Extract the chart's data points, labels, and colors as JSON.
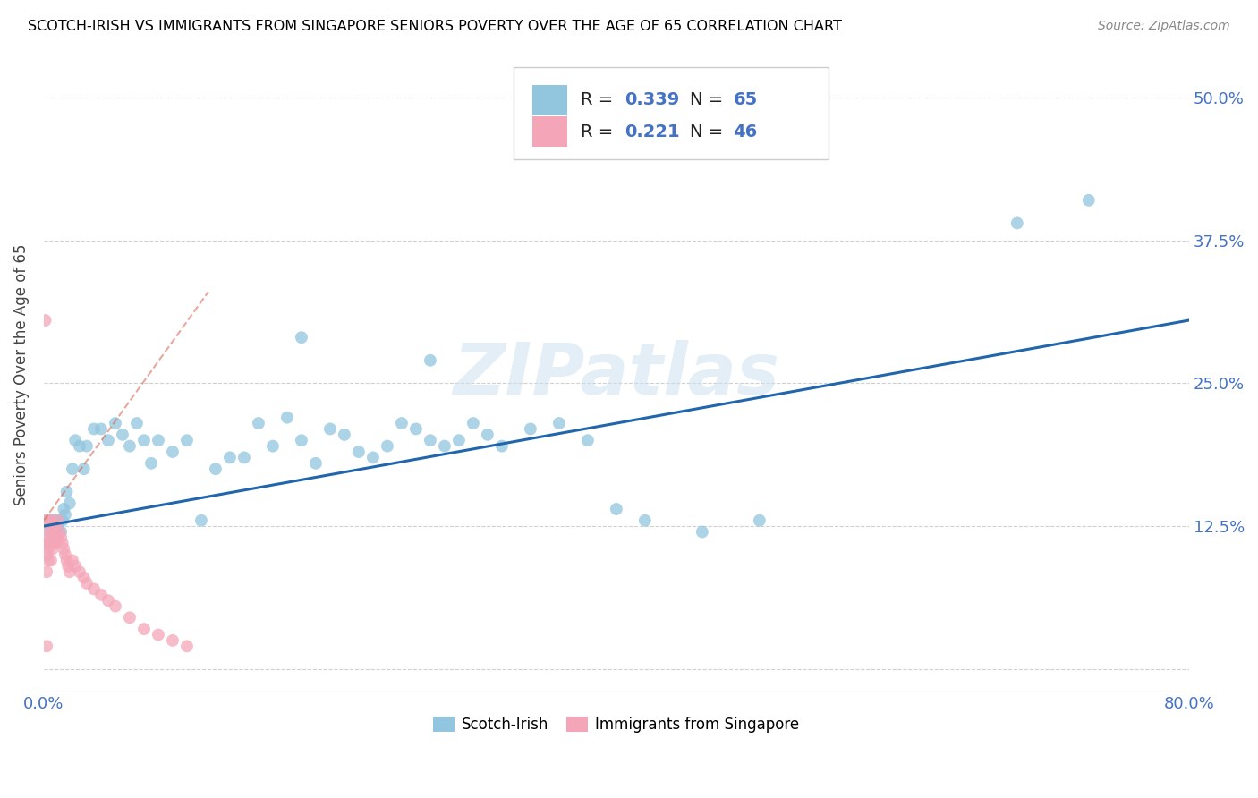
{
  "title": "SCOTCH-IRISH VS IMMIGRANTS FROM SINGAPORE SENIORS POVERTY OVER THE AGE OF 65 CORRELATION CHART",
  "source": "Source: ZipAtlas.com",
  "ylabel": "Seniors Poverty Over the Age of 65",
  "xlim": [
    0.0,
    0.8
  ],
  "ylim": [
    -0.02,
    0.535
  ],
  "blue_color": "#92c5de",
  "pink_color": "#f4a6b8",
  "blue_line_color": "#2166ac",
  "pink_line_color": "#d6604d",
  "watermark": "ZIPatlas",
  "legend_R1": "0.339",
  "legend_N1": "65",
  "legend_R2": "0.221",
  "legend_N2": "46",
  "blue_scatter_x": [
    0.003,
    0.004,
    0.005,
    0.006,
    0.007,
    0.008,
    0.009,
    0.01,
    0.011,
    0.012,
    0.013,
    0.014,
    0.015,
    0.016,
    0.018,
    0.02,
    0.022,
    0.025,
    0.028,
    0.03,
    0.035,
    0.04,
    0.045,
    0.05,
    0.055,
    0.06,
    0.065,
    0.07,
    0.075,
    0.08,
    0.09,
    0.1,
    0.11,
    0.12,
    0.13,
    0.14,
    0.15,
    0.16,
    0.17,
    0.18,
    0.19,
    0.2,
    0.21,
    0.22,
    0.23,
    0.24,
    0.25,
    0.26,
    0.27,
    0.28,
    0.29,
    0.3,
    0.31,
    0.32,
    0.34,
    0.36,
    0.38,
    0.4,
    0.42,
    0.46,
    0.5,
    0.27,
    0.18,
    0.68,
    0.73
  ],
  "blue_scatter_y": [
    0.13,
    0.12,
    0.13,
    0.125,
    0.115,
    0.13,
    0.12,
    0.125,
    0.13,
    0.12,
    0.13,
    0.14,
    0.135,
    0.155,
    0.145,
    0.175,
    0.2,
    0.195,
    0.175,
    0.195,
    0.21,
    0.21,
    0.2,
    0.215,
    0.205,
    0.195,
    0.215,
    0.2,
    0.18,
    0.2,
    0.19,
    0.2,
    0.13,
    0.175,
    0.185,
    0.185,
    0.215,
    0.195,
    0.22,
    0.2,
    0.18,
    0.21,
    0.205,
    0.19,
    0.185,
    0.195,
    0.215,
    0.21,
    0.2,
    0.195,
    0.2,
    0.215,
    0.205,
    0.195,
    0.21,
    0.215,
    0.2,
    0.14,
    0.13,
    0.12,
    0.13,
    0.27,
    0.29,
    0.39,
    0.41
  ],
  "pink_scatter_x": [
    0.001,
    0.001,
    0.002,
    0.002,
    0.002,
    0.003,
    0.003,
    0.003,
    0.004,
    0.004,
    0.005,
    0.005,
    0.005,
    0.006,
    0.006,
    0.007,
    0.007,
    0.008,
    0.008,
    0.009,
    0.01,
    0.01,
    0.011,
    0.012,
    0.013,
    0.014,
    0.015,
    0.016,
    0.017,
    0.018,
    0.02,
    0.022,
    0.025,
    0.028,
    0.03,
    0.035,
    0.04,
    0.045,
    0.05,
    0.06,
    0.07,
    0.08,
    0.09,
    0.1,
    0.001,
    0.002
  ],
  "pink_scatter_y": [
    0.13,
    0.115,
    0.11,
    0.1,
    0.085,
    0.125,
    0.105,
    0.095,
    0.13,
    0.11,
    0.13,
    0.115,
    0.095,
    0.12,
    0.105,
    0.12,
    0.11,
    0.125,
    0.11,
    0.115,
    0.13,
    0.115,
    0.12,
    0.115,
    0.11,
    0.105,
    0.1,
    0.095,
    0.09,
    0.085,
    0.095,
    0.09,
    0.085,
    0.08,
    0.075,
    0.07,
    0.065,
    0.06,
    0.055,
    0.045,
    0.035,
    0.03,
    0.025,
    0.02,
    0.305,
    0.02
  ],
  "blue_line_x": [
    0.0,
    0.8
  ],
  "blue_line_y": [
    0.125,
    0.305
  ],
  "pink_line_x": [
    0.0,
    0.115
  ],
  "pink_line_y": [
    0.13,
    0.33
  ]
}
